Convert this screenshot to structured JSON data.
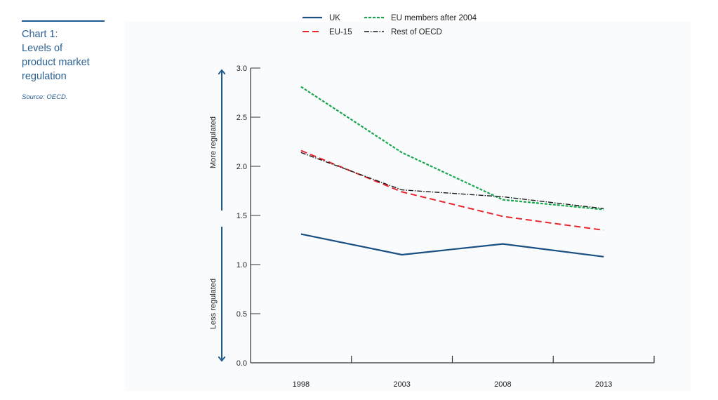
{
  "sidebar": {
    "title_lines": [
      "Chart 1:",
      "Levels of",
      "product market",
      "regulation"
    ],
    "source": "Source: OECD."
  },
  "annotations": {
    "up_label": "More regulated",
    "down_label": "Less regulated"
  },
  "colors": {
    "uk": "#1a4f82",
    "eu15": "#e8262d",
    "eu_after_2004": "#19a74e",
    "rest_oecd": "#1b1b1b",
    "arrow": "#1f5a8e",
    "title": "#2a5f93"
  },
  "chart_data": {
    "type": "line",
    "title": "Chart 1: Levels of product market regulation",
    "source": "Source: OECD.",
    "xlabel": "",
    "ylabel": "",
    "x": [
      "1998",
      "2003",
      "2008",
      "2013"
    ],
    "ylim": [
      0,
      3
    ],
    "yticks": [
      "0.0",
      "0.5",
      "1.0",
      "1.5",
      "2.0",
      "2.5",
      "3.0"
    ],
    "grid": false,
    "legend_position": "top",
    "series": [
      {
        "key": "uk",
        "name": "UK",
        "style": "solid",
        "values": [
          1.31,
          1.1,
          1.21,
          1.08
        ]
      },
      {
        "key": "eu15",
        "name": "EU-15",
        "style": "dashed",
        "values": [
          2.16,
          1.74,
          1.49,
          1.35
        ]
      },
      {
        "key": "eu_after_2004",
        "name": "EU members after 2004",
        "style": "dotted-dash",
        "values": [
          2.81,
          2.14,
          1.66,
          1.56
        ]
      },
      {
        "key": "rest_oecd",
        "name": "Rest of OECD",
        "style": "dash-dot",
        "values": [
          2.14,
          1.76,
          1.69,
          1.57
        ]
      }
    ]
  }
}
